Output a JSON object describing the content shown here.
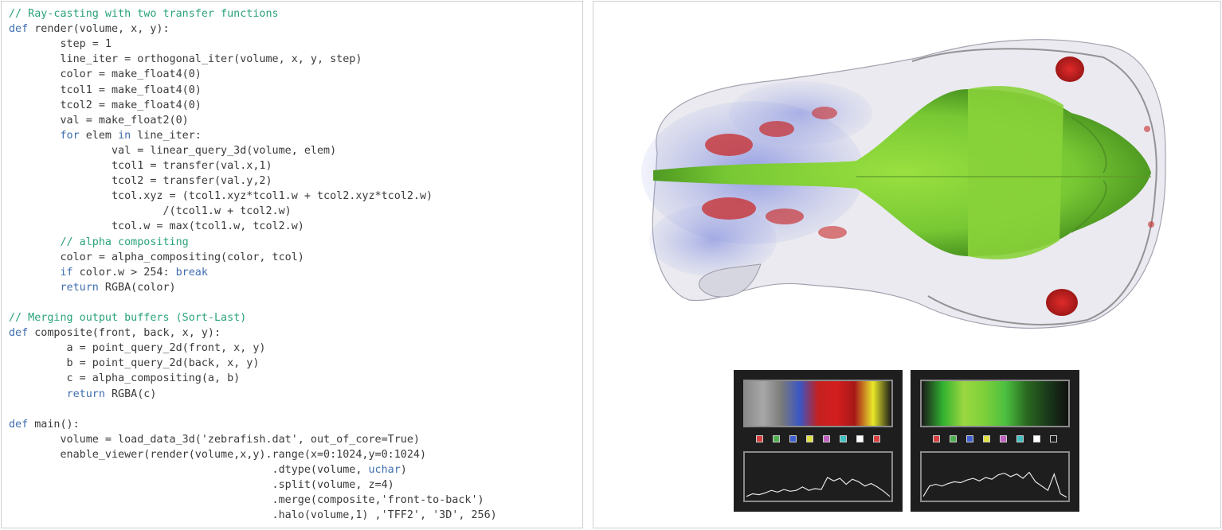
{
  "code": {
    "lines": [
      "// Ray-casting with two transfer functions",
      "def render(volume, x, y):",
      "        step = 1",
      "        line_iter = orthogonal_iter(volume, x, y, step)",
      "        color = make_float4(0)",
      "        tcol1 = make_float4(0)",
      "        tcol2 = make_float4(0)",
      "        val = make_float2(0)",
      "        for elem in line_iter:",
      "                val = linear_query_3d(volume, elem)",
      "                tcol1 = transfer(val.x,1)",
      "                tcol2 = transfer(val.y,2)",
      "                tcol.xyz = (tcol1.xyz*tcol1.w + tcol2.xyz*tcol2.w)",
      "                        /(tcol1.w + tcol2.w)",
      "                tcol.w = max(tcol1.w, tcol2.w)",
      "        // alpha compositing",
      "        color = alpha_compositing(color, tcol)",
      "        if color.w > 254: break",
      "        return RGBA(color)",
      "",
      "// Merging output buffers (Sort-Last)",
      "def composite(front, back, x, y):",
      "         a = point_query_2d(front, x, y)",
      "         b = point_query_2d(back, x, y)",
      "         c = alpha_compositing(a, b)",
      "         return RGBA(c)",
      "",
      "def main():",
      "        volume = load_data_3d('zebrafish.dat', out_of_core=True)",
      "        enable_viewer(render(volume,x,y).range(x=0:1024,y=0:1024)",
      "                                         .dtype(volume, uchar)",
      "                                         .split(volume, z=4)",
      "                                         .merge(composite,'front-to-back')",
      "                                         .halo(volume,1) ,'TFF2', '3D', 256)"
    ],
    "keywords": [
      "def",
      "for",
      "in",
      "if",
      "break",
      "return",
      "uchar"
    ]
  },
  "render_view": {
    "image": "zebrafish-volume-render",
    "colors": {
      "body": "#7ed03a",
      "vessels": "#6a78d8",
      "highlights": "#c8202a",
      "outline": "#8a8a8a"
    }
  },
  "transfer_functions": [
    {
      "name": "transfer-function-1",
      "bar_colors": [
        "#8a8a8a",
        "#a8a8a8",
        "#7a7a7a",
        "#3b56c4",
        "#c42020",
        "#d41e1e",
        "#a81818",
        "#e8e82a",
        "#1a1a1a"
      ],
      "dot_colors": [
        "#d84040",
        "#50b050",
        "#4060d0",
        "#e0e040",
        "#c060c0",
        "#40c0c0",
        "#ffffff",
        "#d84040"
      ],
      "histogram": [
        0.06,
        0.12,
        0.1,
        0.14,
        0.2,
        0.16,
        0.22,
        0.18,
        0.2,
        0.28,
        0.2,
        0.24,
        0.22,
        0.5,
        0.42,
        0.48,
        0.34,
        0.46,
        0.4,
        0.3,
        0.36,
        0.28,
        0.18,
        0.06
      ]
    },
    {
      "name": "transfer-function-2",
      "bar_colors": [
        "#1a1a1a",
        "#30b030",
        "#9ad840",
        "#7ed03a",
        "#4cc040",
        "#2a6a20",
        "#1a3a1a",
        "#101010"
      ],
      "dot_colors": [
        "#d84040",
        "#50b050",
        "#4060d0",
        "#e0e040",
        "#c060c0",
        "#40c0c0",
        "#ffffff",
        "#1e1e1e"
      ],
      "histogram": [
        0.06,
        0.3,
        0.34,
        0.3,
        0.36,
        0.4,
        0.38,
        0.44,
        0.48,
        0.42,
        0.5,
        0.46,
        0.56,
        0.6,
        0.52,
        0.58,
        0.48,
        0.62,
        0.4,
        0.3,
        0.2,
        0.58,
        0.12,
        0.04
      ]
    }
  ]
}
